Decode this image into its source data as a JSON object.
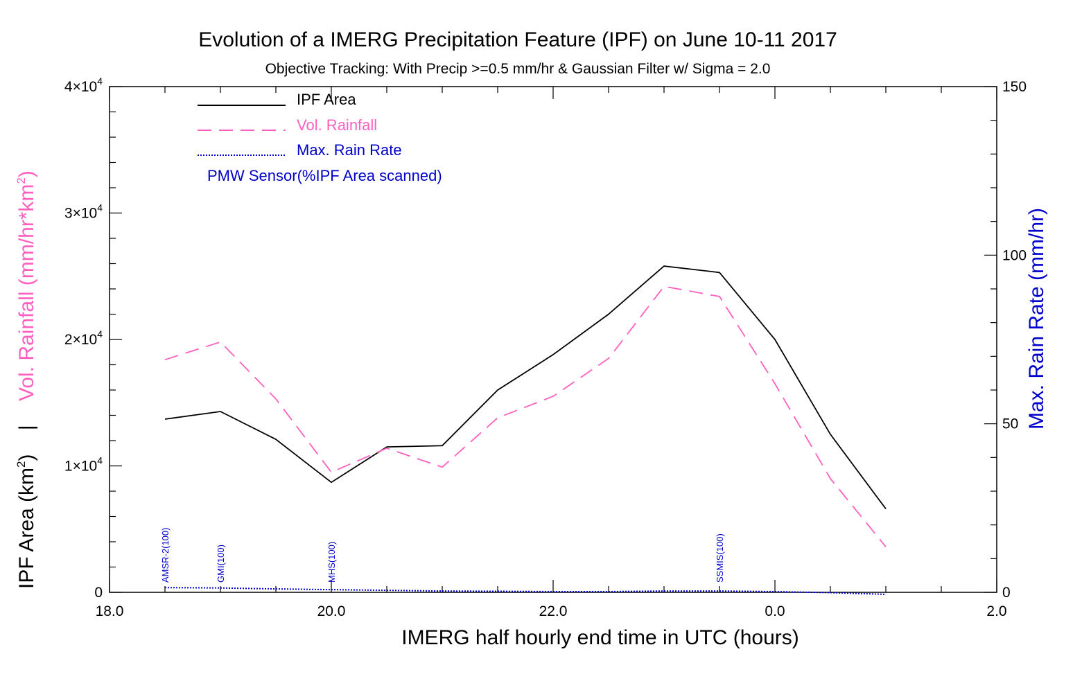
{
  "chart_data": {
    "type": "line",
    "title": "Evolution of a IMERG Precipitation Feature (IPF) on June 10-11 2017",
    "subtitle": "Objective Tracking: With Precip >=0.5 mm/hr & Gaussian Filter w/ Sigma = 2.0",
    "xlabel": "IMERG half hourly end time in UTC (hours)",
    "ylabel_left_top": "Vol. Rainfall (mm/hr*km",
    "ylabel_left_sep": "|",
    "ylabel_left_bottom": "IPF Area (km",
    "ylabel_sup": "2",
    "ylabel_left_top_close": ")",
    "ylabel_left_bottom_close": ")",
    "ylabel_right": "Max. Rain Rate (mm/hr)",
    "x_tick_labels": [
      "18.0",
      "20.0",
      "22.0",
      "0.0",
      "2.0"
    ],
    "xlim_hours_elapsed_from_18utc": [
      0,
      8
    ],
    "y_left_tick_labels": [
      {
        "mantissa": "0",
        "exp": ""
      },
      {
        "mantissa": "1×10",
        "exp": "4"
      },
      {
        "mantissa": "2×10",
        "exp": "4"
      },
      {
        "mantissa": "3×10",
        "exp": "4"
      },
      {
        "mantissa": "4×10",
        "exp": "4"
      }
    ],
    "ylim_left": [
      0,
      40000
    ],
    "y_right_tick_labels": [
      "0",
      "50",
      "100",
      "150"
    ],
    "ylim_right": [
      0,
      150
    ],
    "x": [
      "18:30",
      "19:00",
      "19:30",
      "20:00",
      "20:30",
      "21:00",
      "21:30",
      "22:00",
      "22:30",
      "23:00",
      "23:30",
      "00:00",
      "00:30",
      "01:00"
    ],
    "series": [
      {
        "name": "IPF Area",
        "axis": "left",
        "color": "#000000",
        "style": "solid",
        "values": [
          13700,
          14300,
          12100,
          8700,
          11500,
          11600,
          16000,
          18800,
          22000,
          25800,
          25300,
          20000,
          12500,
          6600
        ]
      },
      {
        "name": "Vol. Rainfall",
        "axis": "left",
        "color": "#ff5fbe",
        "style": "dashed",
        "values": [
          18400,
          19800,
          15300,
          9500,
          11400,
          9900,
          13800,
          15500,
          18500,
          24200,
          23400,
          16500,
          9000,
          3600
        ]
      },
      {
        "name": "Max. Rain Rate",
        "axis": "right",
        "color": "#0000cc",
        "style": "dotted",
        "values": [
          1.4,
          1.3,
          1.0,
          0.8,
          0.6,
          0.4,
          0.3,
          0.2,
          0.2,
          0.4,
          0.4,
          0.2,
          -0.1,
          -0.6
        ]
      }
    ],
    "legend_title_pmw": "PMW Sensor(%IPF Area scanned)",
    "legend_position": "top-left",
    "sensor_annotations": [
      {
        "x": "18:30",
        "label": "AMSR-2(100)"
      },
      {
        "x": "19:00",
        "label": "GMI(100)"
      },
      {
        "x": "20:00",
        "label": "MHS(100)"
      },
      {
        "x": "23:30",
        "label": "SSMIS(100)"
      }
    ],
    "colors": {
      "axis": "#000000",
      "vol_rainfall": "#ff5fbe",
      "max_rain_rate": "#0000cc",
      "ipf_area": "#000000"
    },
    "grid": false
  }
}
